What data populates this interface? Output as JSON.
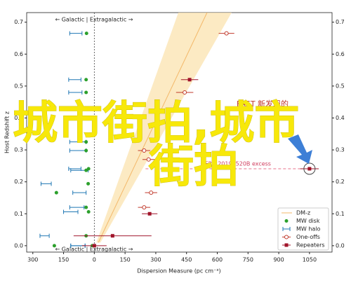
{
  "chart_data": {
    "type": "scatter",
    "xlabel": "Dispersion Measure (pc cm⁻³)",
    "ylabel": "Host Redshift z",
    "xlim": [
      -330,
      1160
    ],
    "ylim": [
      -0.02,
      0.73
    ],
    "xticks": [
      {
        "value": -300,
        "label": "300"
      },
      {
        "value": -150,
        "label": "150"
      },
      0,
      150,
      300,
      450,
      600,
      750,
      900,
      1050
    ],
    "yticks": [
      {
        "value": 0,
        "label": "0.0"
      },
      0.1,
      0.2,
      0.3,
      0.4,
      0.5,
      0.6,
      0.7
    ],
    "divider_text": "← Galactic | Extragalactic →",
    "annotations": [
      "FAST 新发现的",
      "FRB 20190520B excess"
    ],
    "watermark": [
      "城市街拍,城市",
      "街拍"
    ],
    "legend": "lower right",
    "dm_z": {
      "name": "DM-z",
      "color": "#f3b86a",
      "band_color": "#fbe5b4",
      "x": [
        20,
        550
      ],
      "y": [
        0.01,
        0.73
      ],
      "band_z": [
        0.01,
        0.73
      ],
      "band_low": [
        10,
        410
      ],
      "band_high": [
        30,
        670
      ]
    },
    "series": [
      {
        "name": "MW disk",
        "color": "#2ca02c",
        "x": [
          -38,
          -40,
          -40,
          -40,
          -40,
          -28,
          -40,
          -30,
          -185,
          -40,
          -28,
          -40,
          -195,
          -10
        ],
        "y": [
          0.665,
          0.52,
          0.48,
          0.325,
          0.298,
          0.241,
          0.236,
          0.194,
          0.166,
          0.12,
          0.106,
          0.031,
          0.0,
          0.0
        ]
      },
      {
        "name": "MW halo",
        "color": "#1f77b4",
        "xmin": [
          -120,
          -125,
          -125,
          -120,
          -120,
          -125,
          -115,
          -260,
          -105,
          -120,
          -150,
          -265,
          -115,
          -115
        ],
        "xmax": [
          -60,
          -65,
          -60,
          -40,
          -40,
          -65,
          -30,
          -210,
          -40,
          -50,
          -80,
          -220,
          -45,
          -45
        ],
        "y": [
          0.665,
          0.52,
          0.48,
          0.325,
          0.298,
          0.241,
          0.236,
          0.194,
          0.166,
          0.12,
          0.106,
          0.031,
          0.0,
          0.0
        ]
      },
      {
        "name": "One-offs",
        "color": "#c0392b",
        "x": [
          645,
          441,
          243,
          265,
          277,
          243
        ],
        "xerr": [
          38,
          42,
          30,
          30,
          30,
          30
        ],
        "y": [
          0.665,
          0.48,
          0.298,
          0.27,
          0.166,
          0.12
        ]
      },
      {
        "name": "Repeaters",
        "color": "#a0142a",
        "x": [
          465,
          1050,
          270,
          89,
          0
        ],
        "xerr": [
          42,
          45,
          38,
          190,
          60
        ],
        "y": [
          0.52,
          0.241,
          0.1,
          0.031,
          0.0
        ]
      }
    ]
  }
}
